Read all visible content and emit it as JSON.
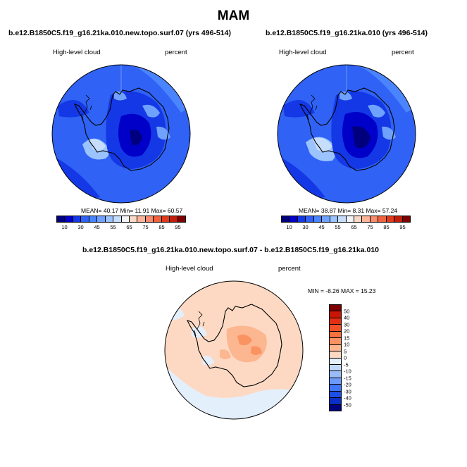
{
  "page": {
    "title": "MAM"
  },
  "panels": [
    {
      "case": "b.e12.B1850C5.f19_g16.21ka.010.new.topo.surf.07 (yrs 496-514)",
      "variable": "High-level cloud",
      "units": "percent",
      "stats": "MEAN=  40.17  Min=  11.91  Max=  60.57",
      "mean": 40.17,
      "min": 11.91,
      "max": 60.57
    },
    {
      "case": "b.e12.B1850C5.f19_g16.21ka.010 (yrs 496-514)",
      "variable": "High-level cloud",
      "units": "percent",
      "stats": "MEAN=  38.87  Min=    8.31  Max=  57.24",
      "mean": 38.87,
      "min": 8.31,
      "max": 57.24
    }
  ],
  "difference": {
    "case": "b.e12.B1850C5.f19_g16.21ka.010.new.topo.surf.07 - b.e12.B1850C5.f19_g16.21ka.010",
    "variable": "High-level cloud",
    "units": "percent",
    "stats": "MIN =  -8.26  MAX =  15.23",
    "min": -8.26,
    "max": 15.23
  },
  "abs_colorbar": {
    "ticks": [
      "10",
      "30",
      "45",
      "55",
      "65",
      "75",
      "85",
      "95"
    ],
    "colors": [
      "#00007f",
      "#0000c8",
      "#1438e6",
      "#2f62f5",
      "#4a84ff",
      "#6fa2ff",
      "#9bc3ff",
      "#c6defc",
      "#f2f4f8",
      "#fcd9c6",
      "#fbb49a",
      "#f88c6d",
      "#f0633f",
      "#e13a1d",
      "#c11f0b",
      "#7f0000"
    ]
  },
  "diff_colorbar": {
    "ticks": [
      "50",
      "40",
      "30",
      "20",
      "15",
      "10",
      "5",
      "0",
      "-5",
      "-10",
      "-15",
      "-20",
      "-30",
      "-40",
      "-50"
    ],
    "colors": [
      "#7f0000",
      "#c81505",
      "#e42e12",
      "#f25027",
      "#f7713f",
      "#fa9362",
      "#fcb690",
      "#fdd9c4",
      "#e4effc",
      "#c0d9fb",
      "#9abdfa",
      "#6c9afa",
      "#4076f7",
      "#1c4fe8",
      "#0b2ec8",
      "#00007f"
    ]
  }
}
